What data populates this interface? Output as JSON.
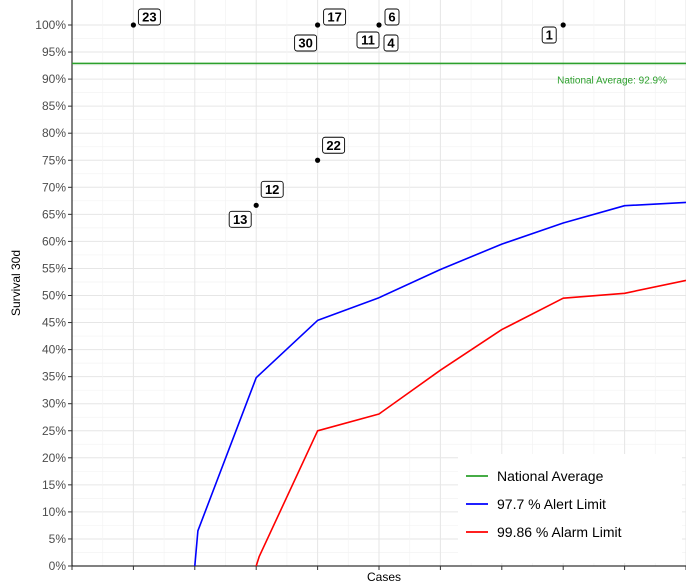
{
  "chart_data": {
    "type": "scatter",
    "xlabel": "Cases",
    "ylabel": "Survival 30d",
    "xlim": [
      0,
      10
    ],
    "ylim": [
      0,
      1
    ],
    "y_ticks": [
      "0%",
      "5%",
      "10%",
      "15%",
      "20%",
      "25%",
      "30%",
      "35%",
      "40%",
      "45%",
      "50%",
      "55%",
      "60%",
      "65%",
      "70%",
      "75%",
      "80%",
      "85%",
      "90%",
      "95%",
      "100%"
    ],
    "x_tick_labels_shown": false,
    "grid": true,
    "points": [
      {
        "label": "23",
        "x": 1,
        "y": 1.0
      },
      {
        "label": "17",
        "x": 4,
        "y": 1.0
      },
      {
        "label": "30",
        "x": 4,
        "y": 1.0
      },
      {
        "label": "6",
        "x": 5,
        "y": 1.0
      },
      {
        "label": "11",
        "x": 5,
        "y": 1.0
      },
      {
        "label": "4",
        "x": 5,
        "y": 1.0
      },
      {
        "label": "1",
        "x": 8,
        "y": 1.0
      },
      {
        "label": "22",
        "x": 4,
        "y": 0.75
      },
      {
        "label": "12",
        "x": 3,
        "y": 0.6667
      },
      {
        "label": "13",
        "x": 3,
        "y": 0.6667
      }
    ],
    "reference_line": {
      "name": "National Average",
      "value": 0.929,
      "label": "National Average: 92.9%",
      "color": "#2ca02c"
    },
    "series": [
      {
        "name": "97.7 %  Alert Limit",
        "color": "#0000ff",
        "x": [
          2.0,
          2.05,
          3,
          4,
          5,
          6,
          7,
          8,
          9,
          10
        ],
        "y": [
          0.0,
          0.065,
          0.348,
          0.454,
          0.496,
          0.548,
          0.595,
          0.634,
          0.666,
          0.672
        ]
      },
      {
        "name": "99.86 %  Alarm Limit",
        "color": "#ff0000",
        "x": [
          3.0,
          3.05,
          4,
          5,
          6,
          7,
          8,
          9,
          10
        ],
        "y": [
          0.0,
          0.018,
          0.25,
          0.281,
          0.362,
          0.437,
          0.495,
          0.504,
          0.528
        ]
      }
    ],
    "legend": {
      "placement": "bottom-right",
      "entries": [
        {
          "label": "National Average",
          "color": "#2ca02c"
        },
        {
          "label": "97.7 %  Alert Limit",
          "color": "#0000ff"
        },
        {
          "label": "99.86 %  Alarm Limit",
          "color": "#ff0000"
        }
      ]
    }
  }
}
